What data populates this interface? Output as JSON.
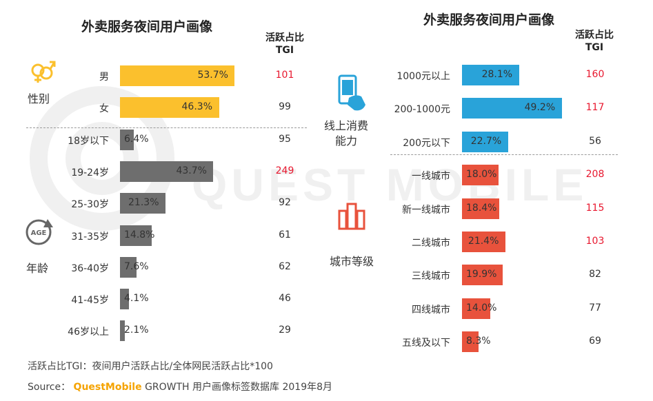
{
  "watermark": "QUEST MOBILE",
  "left": {
    "title": "外卖服务夜间用户画像",
    "header": [
      "活跃占比",
      "TGI"
    ],
    "groups": [
      {
        "label": "性别",
        "icon": "gender-icon"
      },
      {
        "label": "年龄",
        "icon": "age-icon",
        "icon_text": "AGE"
      }
    ]
  },
  "right": {
    "title": "外卖服务夜间用户画像",
    "header": [
      "活跃占比",
      "TGI"
    ],
    "groups": [
      {
        "label_lines": [
          "线上消费",
          "能力"
        ],
        "icon": "mobile-payment-icon"
      },
      {
        "label": "城市等级",
        "icon": "city-buildings-icon"
      }
    ]
  },
  "colors": {
    "gender": "#fbc02d",
    "age": "#6e6e6e",
    "consumption": "#29a3d9",
    "city": "#e8523c",
    "tgi_high": "#e8172e",
    "brand": "#f5a300"
  },
  "chart_data": [
    {
      "type": "bar",
      "orientation": "horizontal",
      "title": "外卖服务夜间用户画像",
      "xlim": [
        0,
        100
      ],
      "series_label": "活跃占比",
      "sections": [
        {
          "group": "性别",
          "categories": [
            "男",
            "女"
          ],
          "values": [
            53.7,
            46.3
          ],
          "tgi": [
            101,
            99
          ],
          "tgi_highlight": [
            true,
            false
          ]
        },
        {
          "group": "年龄",
          "categories": [
            "18岁以下",
            "19-24岁",
            "25-30岁",
            "31-35岁",
            "36-40岁",
            "41-45岁",
            "46岁以上"
          ],
          "values": [
            6.4,
            43.7,
            21.3,
            14.8,
            7.6,
            4.1,
            2.1
          ],
          "tgi": [
            95,
            249,
            92,
            61,
            62,
            46,
            29
          ],
          "tgi_highlight": [
            false,
            true,
            false,
            false,
            false,
            false,
            false
          ]
        }
      ]
    },
    {
      "type": "bar",
      "orientation": "horizontal",
      "title": "外卖服务夜间用户画像",
      "xlim": [
        0,
        100
      ],
      "series_label": "活跃占比",
      "sections": [
        {
          "group": "线上消费能力",
          "categories": [
            "1000元以上",
            "200-1000元",
            "200元以下"
          ],
          "values": [
            28.1,
            49.2,
            22.7
          ],
          "tgi": [
            160,
            117,
            56
          ],
          "tgi_highlight": [
            true,
            true,
            false
          ]
        },
        {
          "group": "城市等级",
          "categories": [
            "一线城市",
            "新一线城市",
            "二线城市",
            "三线城市",
            "四线城市",
            "五线及以下"
          ],
          "values": [
            18.0,
            18.4,
            21.4,
            19.9,
            14.0,
            8.3
          ],
          "tgi": [
            208,
            115,
            103,
            82,
            77,
            69
          ],
          "tgi_highlight": [
            true,
            true,
            true,
            false,
            false,
            false
          ]
        }
      ]
    }
  ],
  "footer": {
    "note": "活跃占比TGI：夜间用户活跃占比/全体网民活跃占比*100",
    "source_prefix": "Source：",
    "brand": "QuestMobile",
    "source_rest": "GROWTH 用户画像标签数据库 2019年8月"
  }
}
